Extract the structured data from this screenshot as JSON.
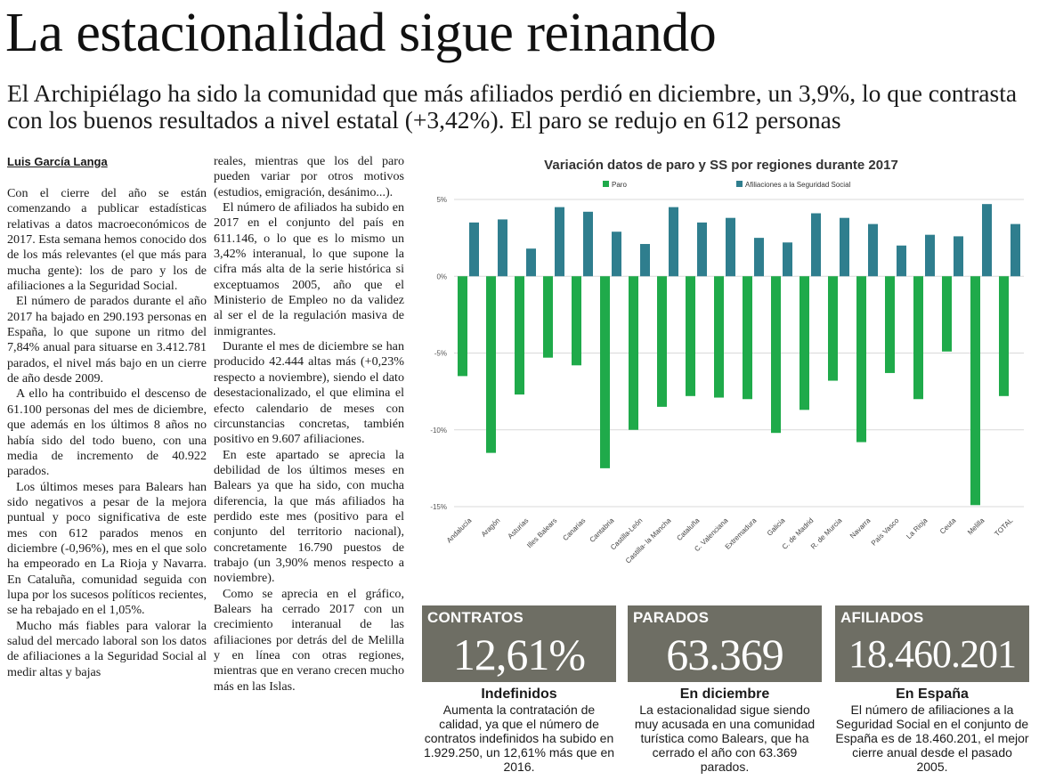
{
  "headline": "La estacionalidad sigue reinando",
  "subhead": "El Archipiélago ha sido la comunidad que más afiliados perdió en diciembre, un 3,9%, lo que contrasta con los buenos resultados a nivel estatal (+3,42%). El paro se redujo en 612 personas",
  "byline": "Luis García Langa",
  "col1": [
    "Con el cierre del año se están comenzando a publicar estadísticas relativas a datos macroeconómicos de 2017. Esta semana hemos conocido dos de los más relevantes (el que más para mucha gente): los de paro y los de afiliaciones a la Seguridad Social.",
    "El número de parados durante el año 2017 ha bajado en 290.193 personas en España, lo que supone un ritmo del 7,84% anual para situarse en 3.412.781 parados, el nivel más bajo en un cierre de año desde 2009.",
    "A ello ha contribuido el descenso de 61.100 personas del mes de diciembre, que además en los últimos 8 años no había sido del todo bueno, con una media de incremento de 40.922 parados.",
    "Los últimos meses para Balears han sido negativos a pesar de la mejora puntual y poco significativa de este mes con 612 parados menos en diciembre (-0,96%), mes en el que solo ha empeorado en La Rioja y Navarra. En Cataluña, comunidad seguida con lupa por los sucesos políticos recientes, se ha rebajado en el 1,05%.",
    "Mucho más fiables para valorar la salud del mercado laboral son los datos de afiliaciones a la Seguridad Social al medir altas y bajas"
  ],
  "col2": [
    "reales, mientras que los del paro pueden variar por otros motivos (estudios, emigración, desánimo...).",
    "El número de afiliados ha subido en 2017 en el conjunto del país en 611.146, o lo que es lo mismo un 3,42% interanual, lo que supone la cifra más alta de la serie histórica si exceptuamos 2005, año que el Ministerio de Empleo no da validez al ser el de la regulación masiva de inmigrantes.",
    "Durante el mes de diciembre se han producido 42.444 altas más (+0,23% respecto a noviembre), siendo el dato desestacionalizado, el que elimina el efecto calendario de meses con circunstancias concretas, también positivo en 9.607 afiliaciones.",
    "En este apartado se aprecia la debilidad de los últimos meses en Balears ya que ha sido, con mucha diferencia, la que más afiliados ha perdido este mes (positivo para el conjunto del territorio nacional), concretamente 16.790 puestos de trabajo (un 3,90% menos respecto a noviembre).",
    "Como se aprecia en el gráfico, Balears ha cerrado 2017 con un crecimiento interanual de las afiliaciones por detrás del de Melilla y en línea con otras regiones, mientras que en verano crecen mucho más en las Islas."
  ],
  "chart_data": {
    "type": "bar",
    "title": "Variación datos de paro y SS por regiones durante 2017",
    "categories": [
      "Andalucía",
      "Aragón",
      "Asturias",
      "Illes Balears",
      "Canarias",
      "Cantabria",
      "Castilla-León",
      "Castilla- la Mancha",
      "Cataluña",
      "C. Valenciana",
      "Extremadura",
      "Galicia",
      "C. de Madrid",
      "R. de Murcia",
      "Navarra",
      "País Vasco",
      "La Rioja",
      "Ceuta",
      "Melilla",
      "TOTAL"
    ],
    "series": [
      {
        "name": "Paro",
        "color": "#1faa4a",
        "values": [
          -6.5,
          -11.5,
          -7.7,
          -5.3,
          -5.8,
          -12.5,
          -10.0,
          -8.5,
          -7.8,
          -7.9,
          -8.0,
          -10.2,
          -8.7,
          -6.8,
          -10.8,
          -6.3,
          -8.0,
          -4.9,
          -14.9,
          -7.8
        ]
      },
      {
        "name": "Afiliaciones a la Seguridad Social",
        "color": "#2f7e8e",
        "values": [
          3.5,
          3.7,
          1.8,
          4.5,
          4.2,
          2.9,
          2.1,
          4.5,
          3.5,
          3.8,
          2.5,
          2.2,
          4.1,
          3.8,
          3.4,
          2.0,
          2.7,
          2.6,
          4.7,
          3.4
        ]
      }
    ],
    "ylim": [
      -15,
      5
    ],
    "yticks": [
      5,
      0,
      -5,
      -10,
      -15
    ],
    "ytick_labels": [
      "5%",
      "0%",
      "-5%",
      "-10%",
      "-15%"
    ],
    "grid": true,
    "legend": "top"
  },
  "stats": [
    {
      "label": "CONTRATOS",
      "value": "12,61%",
      "title": "Indefinidos",
      "desc": "Aumenta la contratación de calidad, ya que el número de contratos indefinidos ha subido en 1.929.250, un 12,61% más que en 2016."
    },
    {
      "label": "PARADOS",
      "value": "63.369",
      "title": "En diciembre",
      "desc": "La estacionalidad sigue siendo muy acusada en una comunidad turística como Balears, que ha cerrado el año con 63.369 parados."
    },
    {
      "label": "AFILIADOS",
      "value": "18.460.201",
      "title": "En España",
      "desc": "El número de afiliaciones a la Seguridad Social en el conjunto de España es de 18.460.201, el mejor cierre anual desde el pasado 2005."
    }
  ]
}
